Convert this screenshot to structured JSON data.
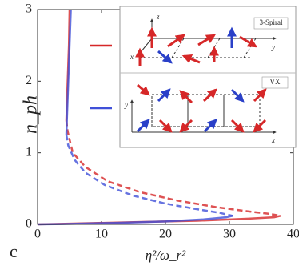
{
  "chart_data": {
    "type": "line",
    "panel": "c",
    "xlabel": "η²/ω_r²",
    "ylabel": "n_ph",
    "xlim": [
      0,
      40
    ],
    "ylim": [
      0,
      3
    ],
    "xticks": [
      0,
      10,
      20,
      30,
      40
    ],
    "yticks": [
      0,
      1,
      2,
      3
    ],
    "series": [
      {
        "name": "3-Spiral",
        "color": "#d62728",
        "branches": [
          {
            "style": "solid",
            "x": [
              5.0,
              4.9,
              4.7,
              4.55,
              4.5
            ],
            "values": [
              3,
              2.5,
              2.0,
              1.6,
              1.45
            ]
          },
          {
            "style": "dashed",
            "x": [
              4.5,
              4.7,
              5.5,
              7.5,
              11,
              16,
              22,
              28,
              33,
              36,
              38
            ],
            "values": [
              1.45,
              1.3,
              1.0,
              0.8,
              0.6,
              0.45,
              0.33,
              0.24,
              0.18,
              0.15,
              0.12
            ]
          },
          {
            "style": "solid",
            "x": [
              38,
              37,
              33,
              25,
              15,
              5,
              0
            ],
            "values": [
              0.12,
              0.1,
              0.08,
              0.05,
              0.03,
              0.01,
              0
            ]
          }
        ]
      },
      {
        "name": "VX",
        "color": "#4050d8",
        "branches": [
          {
            "style": "solid",
            "x": [
              5.2,
              5.0,
              4.8,
              4.6,
              4.5
            ],
            "values": [
              3,
              2.5,
              2.0,
              1.5,
              1.25
            ]
          },
          {
            "style": "dashed",
            "x": [
              4.5,
              4.8,
              5.8,
              7.5,
              10.5,
              15,
              20,
              25,
              28.5,
              30.5
            ],
            "values": [
              1.25,
              1.1,
              0.9,
              0.72,
              0.55,
              0.4,
              0.29,
              0.21,
              0.16,
              0.12
            ]
          },
          {
            "style": "solid",
            "x": [
              30.5,
              29.5,
              26,
              20,
              12,
              4,
              0
            ],
            "values": [
              0.12,
              0.1,
              0.07,
              0.04,
              0.02,
              0.005,
              0
            ]
          }
        ]
      }
    ],
    "inset": {
      "top_axes": [
        "z",
        "x",
        "y"
      ],
      "bottom_axes": [
        "y",
        "x"
      ]
    }
  }
}
